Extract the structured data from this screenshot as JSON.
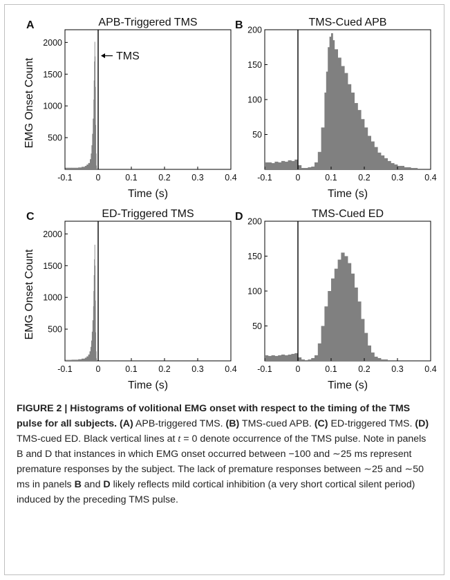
{
  "chart_data": [
    {
      "type": "bar",
      "panel_letter": "A",
      "title": "APB-Triggered TMS",
      "xlabel": "Time (s)",
      "ylabel": "EMG Onset Count",
      "xlim": [
        -0.1,
        0.4
      ],
      "ylim": [
        0,
        2200
      ],
      "x_ticks": [
        "-0.1",
        "0",
        "0.1",
        "0.2",
        "0.3",
        "0.4"
      ],
      "y_ticks": [
        "500",
        "1000",
        "1500",
        "2000"
      ],
      "bar_color": "#808080",
      "vertical_line_x": 0,
      "annotation": "TMS",
      "x": [
        -0.1,
        -0.08,
        -0.06,
        -0.05,
        -0.04,
        -0.035,
        -0.03,
        -0.025,
        -0.022,
        -0.02,
        -0.018,
        -0.016,
        -0.014,
        -0.013,
        -0.012,
        -0.011,
        -0.01,
        -0.009,
        -0.008,
        -0.007,
        -0.006,
        -0.005,
        -0.004,
        -0.002
      ],
      "values": [
        25,
        25,
        30,
        40,
        55,
        75,
        100,
        160,
        250,
        380,
        560,
        800,
        1100,
        1400,
        1700,
        2010,
        1780,
        1300,
        700,
        250,
        60,
        15,
        5,
        0
      ]
    },
    {
      "type": "bar",
      "panel_letter": "B",
      "title": "TMS-Cued APB",
      "xlabel": "Time (s)",
      "ylabel": "",
      "xlim": [
        -0.1,
        0.4
      ],
      "ylim": [
        0,
        200
      ],
      "x_ticks": [
        "-0.1",
        "0",
        "0.1",
        "0.2",
        "0.3",
        "0.4"
      ],
      "y_ticks": [
        "50",
        "100",
        "150",
        "200"
      ],
      "bar_color": "#808080",
      "vertical_line_x": 0,
      "x": [
        -0.1,
        -0.09,
        -0.08,
        -0.07,
        -0.06,
        -0.05,
        -0.04,
        -0.03,
        -0.02,
        -0.01,
        0.0,
        0.01,
        0.02,
        0.03,
        0.04,
        0.05,
        0.06,
        0.07,
        0.08,
        0.085,
        0.09,
        0.095,
        0.1,
        0.105,
        0.11,
        0.12,
        0.13,
        0.14,
        0.15,
        0.16,
        0.17,
        0.18,
        0.19,
        0.2,
        0.21,
        0.22,
        0.23,
        0.24,
        0.25,
        0.26,
        0.27,
        0.28,
        0.29,
        0.3,
        0.32,
        0.34,
        0.36,
        0.38,
        0.4
      ],
      "values": [
        10,
        10,
        9,
        11,
        10,
        12,
        11,
        13,
        12,
        14,
        6,
        2,
        2,
        3,
        4,
        10,
        25,
        60,
        110,
        140,
        175,
        190,
        195,
        185,
        172,
        160,
        148,
        138,
        122,
        110,
        95,
        85,
        72,
        60,
        48,
        40,
        32,
        24,
        20,
        16,
        12,
        9,
        7,
        5,
        3,
        2,
        1,
        1,
        0
      ]
    },
    {
      "type": "bar",
      "panel_letter": "C",
      "title": "ED-Triggered TMS",
      "xlabel": "Time (s)",
      "ylabel": "EMG Onset Count",
      "xlim": [
        -0.1,
        0.4
      ],
      "ylim": [
        0,
        2200
      ],
      "x_ticks": [
        "-0.1",
        "0",
        "0.1",
        "0.2",
        "0.3",
        "0.4"
      ],
      "y_ticks": [
        "500",
        "1000",
        "1500",
        "2000"
      ],
      "bar_color": "#808080",
      "vertical_line_x": 0,
      "x": [
        -0.1,
        -0.08,
        -0.06,
        -0.05,
        -0.04,
        -0.035,
        -0.03,
        -0.026,
        -0.023,
        -0.021,
        -0.019,
        -0.017,
        -0.015,
        -0.014,
        -0.013,
        -0.012,
        -0.011,
        -0.01,
        -0.009,
        -0.008,
        -0.007,
        -0.006,
        -0.005,
        -0.003
      ],
      "values": [
        15,
        18,
        25,
        35,
        50,
        70,
        100,
        150,
        220,
        320,
        460,
        640,
        860,
        1100,
        1350,
        1600,
        1830,
        1500,
        950,
        450,
        150,
        40,
        10,
        0
      ]
    },
    {
      "type": "bar",
      "panel_letter": "D",
      "title": "TMS-Cued ED",
      "xlabel": "Time (s)",
      "ylabel": "",
      "xlim": [
        -0.1,
        0.4
      ],
      "ylim": [
        0,
        200
      ],
      "x_ticks": [
        "-0.1",
        "0",
        "0.1",
        "0.2",
        "0.3",
        "0.4"
      ],
      "y_ticks": [
        "50",
        "100",
        "150",
        "200"
      ],
      "bar_color": "#808080",
      "vertical_line_x": 0,
      "x": [
        -0.1,
        -0.09,
        -0.08,
        -0.07,
        -0.06,
        -0.05,
        -0.04,
        -0.03,
        -0.02,
        -0.01,
        0.0,
        0.01,
        0.02,
        0.03,
        0.04,
        0.05,
        0.06,
        0.07,
        0.08,
        0.09,
        0.1,
        0.11,
        0.12,
        0.13,
        0.14,
        0.15,
        0.16,
        0.17,
        0.18,
        0.19,
        0.2,
        0.21,
        0.22,
        0.23,
        0.24,
        0.25,
        0.27,
        0.3,
        0.35,
        0.4
      ],
      "values": [
        8,
        7,
        8,
        7,
        8,
        9,
        8,
        9,
        10,
        11,
        5,
        2,
        1,
        2,
        4,
        8,
        25,
        50,
        78,
        100,
        118,
        132,
        145,
        155,
        150,
        140,
        125,
        105,
        85,
        60,
        40,
        22,
        12,
        6,
        4,
        2,
        1,
        1,
        0,
        0
      ]
    }
  ],
  "caption": {
    "title": "FIGURE 2 | Histograms of volitional EMG onset with respect to the timing of the TMS pulse for all subjects.",
    "parts": [
      {
        "bold": "(A)",
        "text": " APB-triggered TMS."
      },
      {
        "bold": "(B)",
        "text": " TMS-cued APB."
      },
      {
        "bold": "(C)",
        "text": " ED-triggered TMS."
      },
      {
        "bold": "(D)",
        "text": " TMS-cued ED."
      }
    ],
    "sentence_1_pre": " Black vertical lines at ",
    "sentence_1_var": "t",
    "sentence_1_post": " = 0 denote occurrence of the TMS pulse. Note in panels B and D that instances in which EMG onset occurred between −100 and ∼25 ms represent premature responses by the subject. The lack of premature responses between ∼25 and ∼50 ms in panels ",
    "panel_b": "B",
    "and_word": " and ",
    "panel_d": "D",
    "sentence_2_post": " likely reflects mild cortical inhibition (a very short cortical silent period) induced by the preceding TMS pulse."
  }
}
